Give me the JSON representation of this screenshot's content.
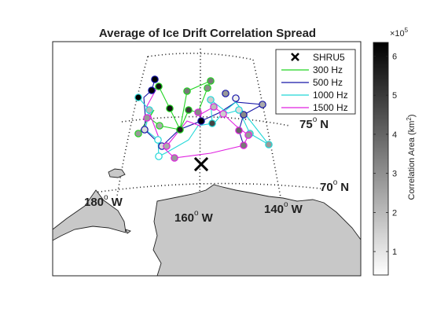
{
  "title": "Average of Ice Drift Correlation Spread",
  "legend": {
    "marker_label": "SHRU5",
    "entries": [
      {
        "label": "300 Hz",
        "color": "#22d422"
      },
      {
        "label": "500 Hz",
        "color": "#1616a8"
      },
      {
        "label": "1000 Hz",
        "color": "#22d8d8"
      },
      {
        "label": "1500 Hz",
        "color": "#e022e0"
      }
    ]
  },
  "grid_labels": {
    "lat_75": "75",
    "lat_70": "70",
    "lat_unit": "N",
    "lon_180": "180",
    "lon_160": "160",
    "lon_140": "140",
    "lon_unit": "W",
    "degree": "o"
  },
  "colorbar": {
    "label": "Correlation Area (km",
    "label_sup": "2",
    "label_end": ")",
    "multiplier": "×10",
    "multiplier_exp": "5",
    "ticks": [
      "1",
      "2",
      "3",
      "4",
      "5",
      "6"
    ],
    "range": [
      0.4,
      6.35
    ],
    "colormap": "gray (white low, black high)"
  }
}
